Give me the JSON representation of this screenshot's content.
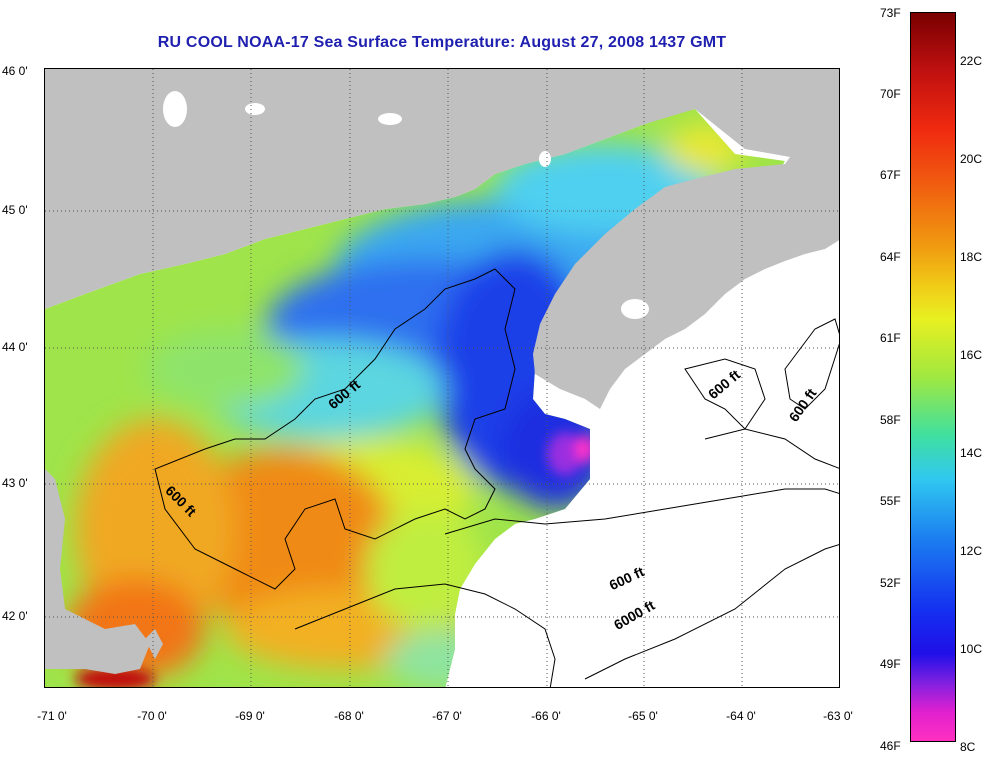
{
  "title": "RU COOL  NOAA-17  Sea Surface Temperature:  August 27, 2008 1437 GMT",
  "axes": {
    "latitude_ticks": [
      "46 0'",
      "45 0'",
      "44 0'",
      "43 0'",
      "42 0'"
    ],
    "longitude_ticks": [
      "-71 0'",
      "-70 0'",
      "-69 0'",
      "-68 0'",
      "-67 0'",
      "-66 0'",
      "-65 0'",
      "-64 0'",
      "-63 0'"
    ]
  },
  "colorbar": {
    "fahrenheit": [
      "73F",
      "70F",
      "67F",
      "64F",
      "61F",
      "58F",
      "55F",
      "52F",
      "49F",
      "46F"
    ],
    "celsius": [
      "22C",
      "20C",
      "18C",
      "16C",
      "14C",
      "12C",
      "10C",
      "8C"
    ]
  },
  "contour_labels": [
    "600 ft",
    "600 ft",
    "600 ft",
    "600 ft",
    "600 ft",
    "6000 ft"
  ],
  "colors": {
    "land": "#c0c0c0",
    "title": "#1f1fb0",
    "cold": "#1a2fe0",
    "warm": "#f06010"
  }
}
